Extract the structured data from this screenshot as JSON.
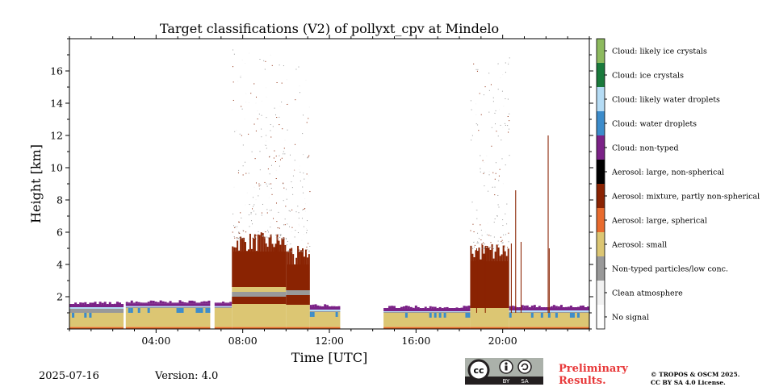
{
  "chart_data": {
    "type": "heatmap",
    "title": "Target classifications (V2) of pollyxt_cpv at Mindelo",
    "xlabel": "Time [UTC]",
    "ylabel": "Height [km]",
    "xlim_hours": [
      0,
      24
    ],
    "ylim_km": [
      0,
      18
    ],
    "x_ticks": [
      {
        "value": 4,
        "label": "04:00"
      },
      {
        "value": 8,
        "label": "08:00"
      },
      {
        "value": 12,
        "label": "12:00"
      },
      {
        "value": 16,
        "label": "16:00"
      },
      {
        "value": 20,
        "label": "20:00"
      }
    ],
    "y_ticks": [
      {
        "value": 2,
        "label": "2"
      },
      {
        "value": 4,
        "label": "4"
      },
      {
        "value": 6,
        "label": "6"
      },
      {
        "value": 8,
        "label": "8"
      },
      {
        "value": 10,
        "label": "10"
      },
      {
        "value": 12,
        "label": "12"
      },
      {
        "value": 14,
        "label": "14"
      },
      {
        "value": 16,
        "label": "16"
      }
    ],
    "classes": [
      {
        "label": "Cloud: likely ice crystals",
        "color": "#8dba5e"
      },
      {
        "label": "Cloud: ice crystals",
        "color": "#1a7a3c"
      },
      {
        "label": "Cloud: likely water droplets",
        "color": "#b5dcf5"
      },
      {
        "label": "Cloud: water droplets",
        "color": "#3c8ccb"
      },
      {
        "label": "Cloud: non-typed",
        "color": "#7b2287"
      },
      {
        "label": "Aerosol: large, non-spherical",
        "color": "#000000"
      },
      {
        "label": "Aerosol: mixture, partly non-spherical",
        "color": "#8a2302"
      },
      {
        "label": "Aerosol: large, spherical",
        "color": "#e86b2e"
      },
      {
        "label": "Aerosol: small",
        "color": "#dcc673"
      },
      {
        "label": "Non-typed particles/low conc.",
        "color": "#999999"
      },
      {
        "label": "Clean atmosphere",
        "color": "#f2f2f2"
      },
      {
        "label": "No signal",
        "color": "#ffffff"
      }
    ],
    "data_segments": [
      {
        "start": 0.0,
        "end": 2.5,
        "small_top": 1.0,
        "low_top": 1.25,
        "wd_top": 1.35,
        "nt_top": 1.5
      },
      {
        "start": 2.6,
        "end": 6.5,
        "small_top": 1.3,
        "low_top": 1.35,
        "wd_top": 1.42,
        "nt_top": 1.58
      },
      {
        "start": 6.7,
        "end": 7.5,
        "small_top": 1.3,
        "low_top": 1.35,
        "wd_top": 1.42,
        "nt_top": 1.58
      },
      {
        "start": 7.5,
        "end": 10.0,
        "small_top": 1.55,
        "mix_band": [
          1.55,
          2.0
        ],
        "low_top": 2.3,
        "small2_top": 2.6,
        "mix_top": 5.6,
        "speckle_top": 17.5
      },
      {
        "start": 10.0,
        "end": 11.1,
        "small_top": 1.5,
        "mix_band": [
          1.5,
          2.1
        ],
        "low_top": 2.4,
        "mix_top": 4.8,
        "speckle_top": 16.5
      },
      {
        "start": 11.1,
        "end": 12.5,
        "small_top": 1.05,
        "low_top": 1.1,
        "wd_top": 1.2,
        "nt_top": 1.35
      },
      {
        "start": 14.5,
        "end": 18.5,
        "small_top": 1.0,
        "low_top": 1.05,
        "wd_top": 1.1,
        "nt_top": 1.25
      },
      {
        "start": 18.5,
        "end": 20.3,
        "small_top": 1.3,
        "mix_top": 5.0,
        "speckle_top": 17.0
      },
      {
        "start": 20.3,
        "end": 24.0,
        "small_top": 1.0,
        "low_top": 1.05,
        "wd_top": 1.15,
        "nt_top": 1.3
      }
    ],
    "spikes": [
      {
        "x": 18.8,
        "top": 5.0
      },
      {
        "x": 19.2,
        "top": 5.0
      },
      {
        "x": 20.4,
        "top": 5.3
      },
      {
        "x": 20.6,
        "top": 8.6
      },
      {
        "x": 20.85,
        "top": 5.4
      },
      {
        "x": 22.1,
        "top": 12.0
      },
      {
        "x": 22.15,
        "top": 5.0
      }
    ]
  },
  "footer": {
    "date": "2025-07-16",
    "version": "Version: 4.0",
    "cc_text": "cc",
    "cc_by": "BY",
    "cc_sa": "SA",
    "preliminary_line1": "Preliminary",
    "preliminary_line2": "Results.",
    "copyright_line1": "© TROPOS & OSCM 2025.",
    "copyright_line2": "CC BY SA 4.0 License."
  },
  "colors": {
    "preliminary": "#e8393a",
    "cc_badge_bg": "#abb1aa",
    "cc_badge_dark": "#231f20"
  }
}
